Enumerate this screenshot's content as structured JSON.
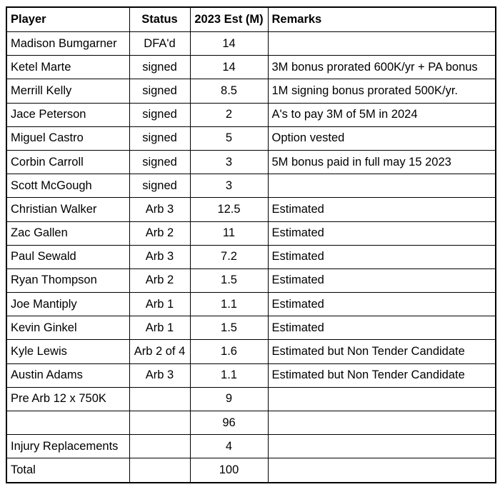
{
  "headers": [
    "Player",
    "Status",
    "2023 Est (M)",
    "Remarks"
  ],
  "rows": [
    [
      "Madison Bumgarner",
      "DFA'd",
      "14",
      ""
    ],
    [
      "Ketel Marte",
      "signed",
      "14",
      "3M bonus prorated 600K/yr +  PA bonus"
    ],
    [
      "Merrill Kelly",
      "signed",
      "8.5",
      "1M signing bonus prorated 500K/yr."
    ],
    [
      "Jace Peterson",
      "signed",
      "2",
      "A's to pay 3M of 5M in 2024"
    ],
    [
      "Miguel Castro",
      "signed",
      "5",
      "Option vested"
    ],
    [
      "Corbin Carroll",
      "signed",
      "3",
      "5M bonus paid in full may 15 2023"
    ],
    [
      "Scott McGough",
      "signed",
      "3",
      ""
    ],
    [
      "Christian Walker",
      "Arb 3",
      "12.5",
      "Estimated"
    ],
    [
      "Zac Gallen",
      "Arb 2",
      "11",
      "Estimated"
    ],
    [
      "Paul Sewald",
      "Arb 3",
      "7.2",
      "Estimated"
    ],
    [
      "Ryan Thompson",
      "Arb 2",
      "1.5",
      "Estimated"
    ],
    [
      "Joe Mantiply",
      "Arb 1",
      "1.1",
      "Estimated"
    ],
    [
      "Kevin Ginkel",
      "Arb 1",
      "1.5",
      "Estimated"
    ],
    [
      "Kyle Lewis",
      "Arb 2 of 4",
      "1.6",
      "Estimated  but Non Tender Candidate"
    ],
    [
      "Austin Adams",
      "Arb 3",
      "1.1",
      "Estimated  but Non Tender Candidate"
    ],
    [
      "Pre Arb 12 x 750K",
      "",
      "9",
      ""
    ],
    [
      "",
      "",
      "96",
      ""
    ],
    [
      "Injury Replacements",
      "",
      "4",
      ""
    ],
    [
      "Total",
      "",
      "100",
      ""
    ]
  ]
}
